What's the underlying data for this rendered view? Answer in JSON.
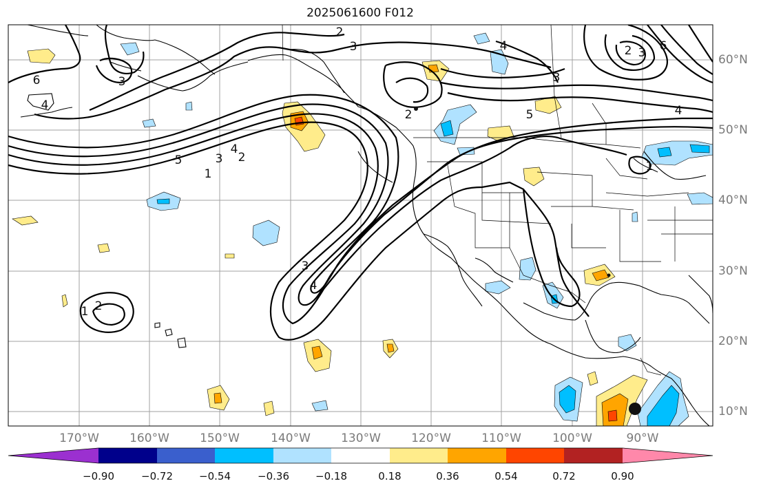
{
  "title": "2025061600 F012",
  "lat_labels": [
    "60°N",
    "50°N",
    "40°N",
    "30°N",
    "20°N",
    "10°N"
  ],
  "lon_labels": [
    "170°W",
    "160°W",
    "150°W",
    "140°W",
    "130°W",
    "120°W",
    "110°W",
    "100°W",
    "90°W"
  ],
  "contour_labels": [
    "2",
    "3",
    "6",
    "3",
    "4",
    "1",
    "2",
    "3",
    "5",
    "4",
    "6",
    "2",
    "3",
    "4",
    "3",
    "5",
    "4",
    "2",
    "3",
    "4",
    "1",
    "2",
    "1"
  ],
  "colorbar": {
    "ticks": [
      "−0.90",
      "−0.72",
      "−0.54",
      "−0.36",
      "−0.18",
      "0.18",
      "0.36",
      "0.54",
      "0.72",
      "0.90"
    ],
    "colors": [
      "#9b30d0",
      "#00008b",
      "#3a5fcd",
      "#00bfff",
      "#b0e2ff",
      "#ffffff",
      "#ffec8b",
      "#ffa500",
      "#ff4500",
      "#b22222",
      "#ff88aa"
    ]
  },
  "colors": {
    "light_blue": "#b0e2ff",
    "blue": "#00bfff",
    "yellow": "#ffec8b",
    "orange": "#ffa500",
    "red_orange": "#ff4500",
    "grid": "#a0a0a0"
  }
}
